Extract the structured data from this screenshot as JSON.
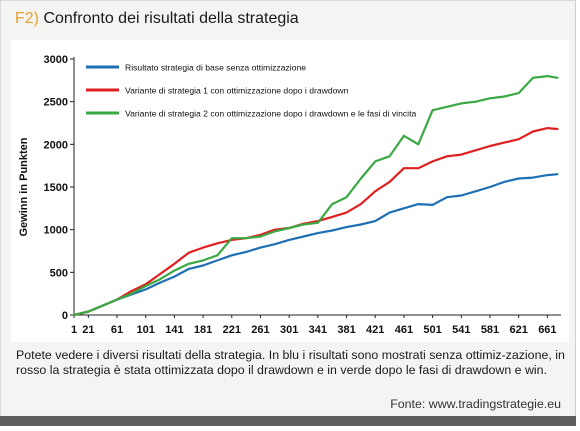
{
  "figure": {
    "label": "F2)",
    "title": "Confronto dei risultati della strategia"
  },
  "caption": "Potete vedere i diversi risultati della strategia. In blu i risultati sono mostrati senza ottimiz-zazione, in rosso la strategia è stata ottimizzata dopo il drawdown e in verde dopo le fasi di drawdown e win.",
  "source": "Fonte: www.tradingstrategie.eu",
  "chart_data": {
    "type": "line",
    "ylabel": "Gewinn in Punkten",
    "xlabel": "",
    "xlim": [
      1,
      680
    ],
    "ylim": [
      0,
      3000
    ],
    "yticks": [
      0,
      500,
      1000,
      1500,
      2000,
      2500,
      3000
    ],
    "xticks": [
      1,
      21,
      61,
      101,
      141,
      181,
      221,
      261,
      301,
      341,
      381,
      421,
      461,
      501,
      541,
      581,
      621,
      661
    ],
    "grid": false,
    "legend": "top-left",
    "x": [
      1,
      21,
      41,
      61,
      81,
      101,
      121,
      141,
      161,
      181,
      201,
      221,
      241,
      261,
      281,
      301,
      321,
      341,
      361,
      381,
      401,
      421,
      441,
      461,
      481,
      501,
      521,
      541,
      561,
      581,
      601,
      621,
      641,
      661,
      675
    ],
    "series": [
      {
        "name": "Risultato strategia di base senza ottimizzazione",
        "color": "#1f6fb5",
        "values": [
          0,
          40,
          110,
          180,
          240,
          300,
          380,
          450,
          540,
          580,
          640,
          700,
          740,
          790,
          830,
          880,
          920,
          960,
          990,
          1030,
          1060,
          1100,
          1200,
          1250,
          1300,
          1290,
          1380,
          1400,
          1450,
          1500,
          1560,
          1600,
          1610,
          1640,
          1650
        ]
      },
      {
        "name": "Variante di strategia 1 con ottimizzazione dopo i drawdown",
        "color": "#e02020",
        "values": [
          0,
          40,
          110,
          180,
          280,
          360,
          480,
          600,
          730,
          790,
          840,
          880,
          900,
          940,
          1000,
          1020,
          1070,
          1100,
          1150,
          1200,
          1300,
          1450,
          1560,
          1720,
          1720,
          1800,
          1860,
          1880,
          1930,
          1980,
          2020,
          2060,
          2150,
          2190,
          2180
        ]
      },
      {
        "name": "Variante di strategia 2 con ottimizzazione dopo i drawdown e le fasi di vincita",
        "color": "#3aa843",
        "values": [
          0,
          40,
          110,
          180,
          250,
          340,
          420,
          520,
          600,
          640,
          700,
          900,
          900,
          920,
          980,
          1020,
          1060,
          1080,
          1300,
          1380,
          1600,
          1800,
          1860,
          2100,
          2000,
          2400,
          2440,
          2480,
          2500,
          2540,
          2560,
          2600,
          2780,
          2800,
          2780
        ]
      }
    ]
  }
}
